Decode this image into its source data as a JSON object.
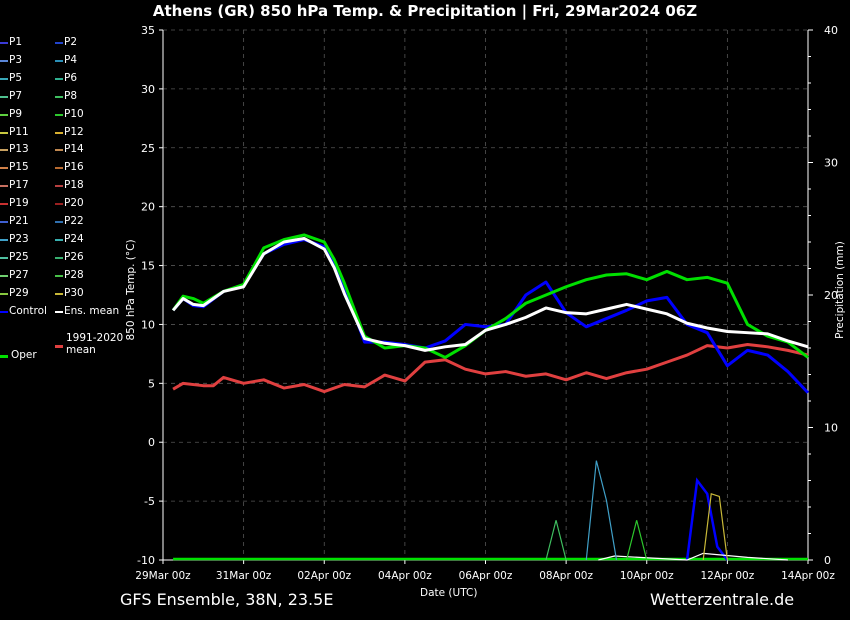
{
  "title": "Athens  (GR)  850 hPa Temp. & Precipitation | Fri, 29Mar2024 06Z",
  "footer": {
    "left": "GFS Ensemble, 38N, 23.5E",
    "right": "Wetterzentrale.de"
  },
  "chart_data": {
    "type": "line",
    "xlabel": "Date (UTC)",
    "ylabel": "850 hPa Temp. (°C)",
    "y2label": "Precipitation (mm)",
    "x_ticks": [
      "29Mar 00z",
      "31Mar 00z",
      "02Apr 00z",
      "04Apr 00z",
      "06Apr 00z",
      "08Apr 00z",
      "10Apr 00z",
      "12Apr 00z",
      "14Apr 00z"
    ],
    "ylim": [
      -10,
      35
    ],
    "y_ticks": [
      -10,
      -5,
      0,
      5,
      10,
      15,
      20,
      25,
      30,
      35
    ],
    "y2lim": [
      0,
      40
    ],
    "y2_ticks": [
      0,
      10,
      20,
      30,
      40
    ],
    "grid": true,
    "legend_position": "left",
    "x_units": "days since 29Mar 00z",
    "colors": {
      "P1": "#3b3bd6",
      "P2": "#2244cc",
      "P3": "#5a86d8",
      "P4": "#2a8fb8",
      "P5": "#39a8b8",
      "P6": "#2fb090",
      "P7": "#4fc08f",
      "P8": "#3fbf60",
      "P9": "#5fd040",
      "P10": "#2dc82d",
      "P11": "#c8c840",
      "P12": "#d8b030",
      "P13": "#c8a060",
      "P14": "#c08850",
      "P15": "#d08048",
      "P16": "#b86a30",
      "P17": "#c87060",
      "P18": "#b84040",
      "P19": "#c83030",
      "P20": "#9a2020",
      "P21": "#4060d0",
      "P22": "#3070b0",
      "P23": "#40a0c8",
      "P24": "#38b0b0",
      "P25": "#50c0a0",
      "P26": "#38b070",
      "P27": "#70d070",
      "P28": "#48c048",
      "P29": "#88c840",
      "P30": "#c8b838",
      "Control": "#0000ff",
      "Ens. mean": "#ffffff",
      "Oper": "#00e000",
      "1991-2020 mean": "#e04040"
    },
    "series": [
      {
        "name": "Oper",
        "x": [
          0.25,
          0.5,
          0.75,
          1,
          1.5,
          2,
          2.5,
          3,
          3.5,
          4,
          4.25,
          4.5,
          5,
          5.5,
          6,
          6.5,
          7,
          7.5,
          8,
          8.5,
          9,
          9.5,
          10,
          10.5,
          11,
          11.5,
          12,
          12.5,
          13,
          13.5,
          14,
          14.5,
          15,
          15.5,
          16
        ],
        "y": [
          11.2,
          12.4,
          12.2,
          11.8,
          12.8,
          13.4,
          16.5,
          17.2,
          17.6,
          17.0,
          15.5,
          13.5,
          9.0,
          8.0,
          8.2,
          8.0,
          7.2,
          8.2,
          9.5,
          10.5,
          11.8,
          12.5,
          13.2,
          13.8,
          14.2,
          14.3,
          13.8,
          14.5,
          13.8,
          14.0,
          13.5,
          10.0,
          9.0,
          8.5,
          7.2
        ]
      },
      {
        "name": "Control",
        "x": [
          0.25,
          0.5,
          0.75,
          1,
          1.5,
          2,
          2.5,
          3,
          3.5,
          4,
          4.25,
          4.5,
          5,
          5.5,
          6,
          6.5,
          7,
          7.5,
          8,
          8.5,
          9,
          9.5,
          10,
          10.5,
          11,
          11.5,
          12,
          12.5,
          13,
          13.5,
          14,
          14.5,
          15,
          15.5,
          16
        ],
        "y": [
          11.2,
          12.2,
          11.6,
          11.5,
          12.8,
          13.3,
          16.0,
          16.8,
          17.2,
          16.6,
          15.2,
          13.2,
          8.5,
          8.5,
          8.3,
          8.0,
          8.6,
          10.0,
          9.8,
          10.0,
          12.5,
          13.6,
          11.0,
          9.8,
          10.5,
          11.2,
          12.0,
          12.3,
          10.0,
          9.3,
          6.5,
          7.8,
          7.4,
          6.0,
          4.2
        ]
      },
      {
        "name": "Ens. mean",
        "x": [
          0.25,
          0.5,
          0.75,
          1,
          1.5,
          2,
          2.5,
          3,
          3.5,
          4,
          4.25,
          4.5,
          5,
          5.5,
          6,
          6.5,
          7,
          7.5,
          8,
          8.5,
          9,
          9.5,
          10,
          10.5,
          11,
          11.5,
          12,
          12.5,
          13,
          13.5,
          14,
          14.5,
          15,
          15.5,
          16
        ],
        "y": [
          11.2,
          12.2,
          11.7,
          11.6,
          12.8,
          13.2,
          16.0,
          17.0,
          17.3,
          16.4,
          14.8,
          12.6,
          8.8,
          8.4,
          8.2,
          7.8,
          8.1,
          8.3,
          9.5,
          10.0,
          10.6,
          11.4,
          11.0,
          10.9,
          11.3,
          11.7,
          11.3,
          10.9,
          10.1,
          9.7,
          9.4,
          9.3,
          9.2,
          8.6,
          8.1
        ]
      },
      {
        "name": "1991-2020 mean",
        "x": [
          0.25,
          0.5,
          1,
          1.25,
          1.5,
          2,
          2.5,
          3,
          3.5,
          4,
          4.5,
          5,
          5.5,
          6,
          6.5,
          7,
          7.5,
          8,
          8.5,
          9,
          9.5,
          10,
          10.5,
          11,
          11.5,
          12,
          12.5,
          13,
          13.5,
          14,
          14.5,
          15,
          15.5,
          16
        ],
        "y": [
          4.5,
          5.0,
          4.8,
          4.8,
          5.5,
          5.0,
          5.3,
          4.6,
          4.9,
          4.3,
          4.9,
          4.7,
          5.7,
          5.2,
          6.8,
          7.0,
          6.2,
          5.8,
          6.0,
          5.6,
          5.8,
          5.3,
          5.9,
          5.4,
          5.9,
          6.2,
          6.8,
          7.4,
          8.2,
          8.0,
          8.3,
          8.1,
          7.8,
          7.4
        ]
      }
    ],
    "precipitation": [
      {
        "name": "Control",
        "x": [
          13.0,
          13.25,
          13.5,
          13.75,
          14.0
        ],
        "y": [
          0,
          6.0,
          5.0,
          1.0,
          0
        ]
      },
      {
        "name": "Ens. mean",
        "x": [
          10.8,
          11.2,
          13.0,
          13.4,
          14.5,
          15.5
        ],
        "y": [
          0,
          0.3,
          0,
          0.5,
          0.2,
          0
        ]
      },
      {
        "name": "P23",
        "x": [
          10.5,
          10.75,
          11.0,
          11.25
        ],
        "y": [
          0,
          7.5,
          4.5,
          0
        ]
      },
      {
        "name": "P30",
        "x": [
          13.4,
          13.6,
          13.8,
          14.0
        ],
        "y": [
          0,
          5.0,
          4.8,
          0
        ]
      },
      {
        "name": "P10",
        "x": [
          11.5,
          11.75,
          12.0
        ],
        "y": [
          0,
          3.0,
          0
        ]
      },
      {
        "name": "P8",
        "x": [
          9.5,
          9.75,
          10.0
        ],
        "y": [
          0,
          3.0,
          0
        ]
      }
    ]
  }
}
